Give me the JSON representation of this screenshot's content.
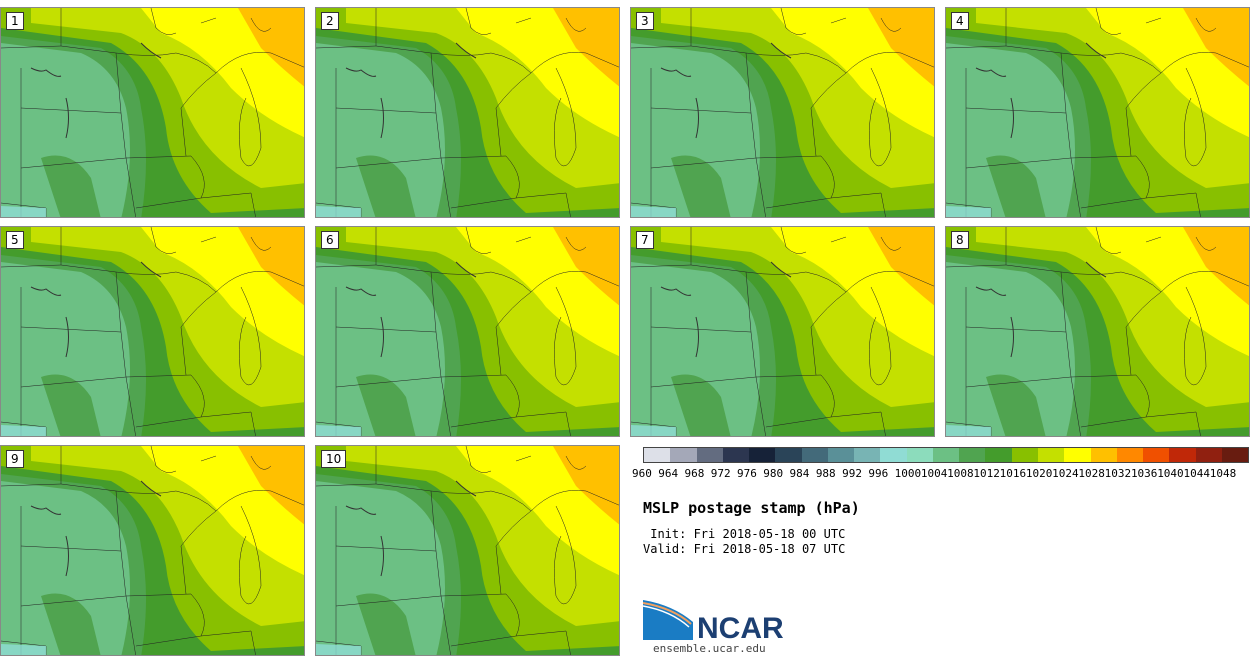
{
  "stamps": [
    {
      "label": "1"
    },
    {
      "label": "2"
    },
    {
      "label": "3"
    },
    {
      "label": "4"
    },
    {
      "label": "5"
    },
    {
      "label": "6"
    },
    {
      "label": "7"
    },
    {
      "label": "8"
    },
    {
      "label": "9"
    },
    {
      "label": "10"
    }
  ],
  "colorbar": {
    "ticks": [
      "960",
      "964",
      "968",
      "972",
      "976",
      "980",
      "984",
      "988",
      "992",
      "996",
      "1000",
      "1004",
      "1008",
      "1012",
      "1016",
      "1020",
      "1024",
      "1028",
      "1032",
      "1036",
      "1040",
      "1044",
      "1048"
    ],
    "colors": [
      "#dde0e8",
      "#a4a8b8",
      "#636c80",
      "#2c3650",
      "#162238",
      "#2a4458",
      "#436a7a",
      "#5a9098",
      "#78b4b4",
      "#90dcd4",
      "#8cdcbc",
      "#6cc084",
      "#50a450",
      "#449c2c",
      "#88c000",
      "#c4e000",
      "#ffff00",
      "#ffc000",
      "#ff8800",
      "#f05000",
      "#c02808",
      "#902010",
      "#681c10"
    ]
  },
  "title": "MSLP postage stamp (hPa)",
  "init": " Init: Fri 2018-05-18 00 UTC",
  "valid": "Valid: Fri 2018-05-18 07 UTC",
  "logo": {
    "text": "NCAR",
    "url": "ensemble.ucar.edu"
  }
}
